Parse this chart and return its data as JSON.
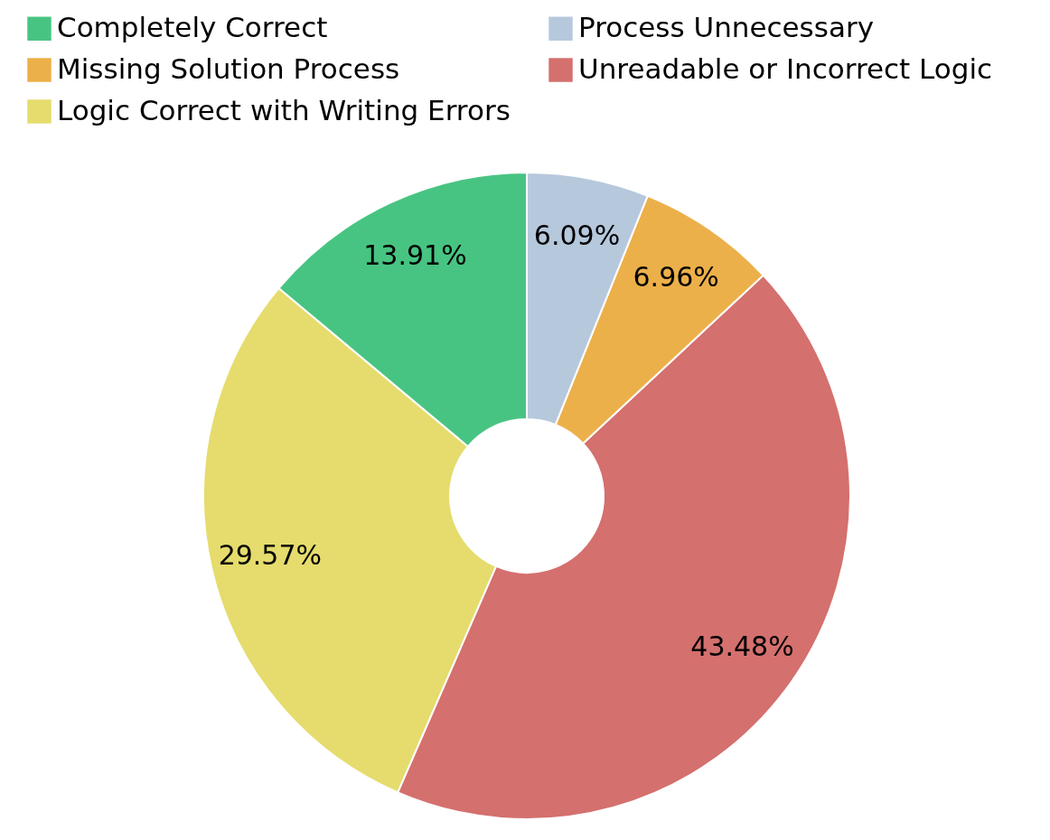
{
  "chart_data": {
    "type": "donut",
    "categories": [
      "Completely Correct",
      "Logic Correct with Writing Errors",
      "Unreadable or Incorrect Logic",
      "Missing Solution Process",
      "Process Unnecessary"
    ],
    "values": [
      13.91,
      29.57,
      43.48,
      6.96,
      6.09
    ],
    "colors": [
      "#48c482",
      "#e5dc6d",
      "#d4706e",
      "#ecb04a",
      "#b6c8dc"
    ],
    "value_labels": [
      "13.91%",
      "29.57%",
      "43.48%",
      "6.96%",
      "6.09%"
    ],
    "legend": "top left"
  }
}
